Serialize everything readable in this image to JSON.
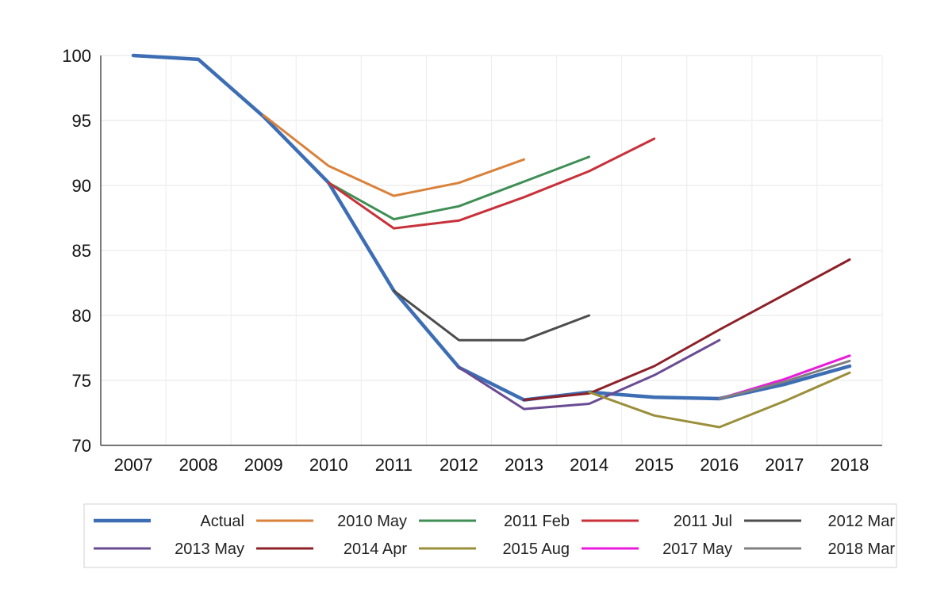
{
  "chart_data": {
    "type": "line",
    "title": "",
    "xlabel": "",
    "ylabel": "",
    "x": [
      2007,
      2008,
      2009,
      2010,
      2011,
      2012,
      2013,
      2014,
      2015,
      2016,
      2017,
      2018
    ],
    "x_tick_labels": [
      "2007",
      "2008",
      "2009",
      "2010",
      "2011",
      "2012",
      "2013",
      "2014",
      "2015",
      "2016",
      "2017",
      "2018"
    ],
    "ylim": [
      70,
      100
    ],
    "y_ticks": [
      70,
      75,
      80,
      85,
      90,
      95,
      100
    ],
    "y_tick_labels": [
      "70",
      "75",
      "80",
      "85",
      "90",
      "95",
      "100"
    ],
    "grid": true,
    "legend_position": "bottom",
    "series": [
      {
        "name": "Actual",
        "color": "#3d6eb4",
        "emphasis": true,
        "points": [
          [
            2007,
            100
          ],
          [
            2008,
            99.7
          ],
          [
            2009,
            95.3
          ],
          [
            2010,
            90.2
          ],
          [
            2011,
            81.9
          ],
          [
            2012,
            76.0
          ],
          [
            2013,
            73.5
          ],
          [
            2014,
            74.1
          ],
          [
            2015,
            73.7
          ],
          [
            2016,
            73.6
          ],
          [
            2017,
            74.7
          ],
          [
            2018,
            76.1
          ]
        ]
      },
      {
        "name": "2010 May",
        "color": "#d9823b",
        "points": [
          [
            2009,
            95.4
          ],
          [
            2010,
            91.5
          ],
          [
            2011,
            89.2
          ],
          [
            2012,
            90.2
          ],
          [
            2013,
            92.0
          ]
        ]
      },
      {
        "name": "2011 Feb",
        "color": "#3f8f55",
        "points": [
          [
            2010,
            90.2
          ],
          [
            2011,
            87.4
          ],
          [
            2012,
            88.4
          ],
          [
            2013,
            90.3
          ],
          [
            2014,
            92.2
          ]
        ]
      },
      {
        "name": "2011 Jul",
        "color": "#c8313a",
        "points": [
          [
            2010,
            90.2
          ],
          [
            2011,
            86.7
          ],
          [
            2012,
            87.3
          ],
          [
            2013,
            89.1
          ],
          [
            2014,
            91.1
          ],
          [
            2015,
            93.6
          ]
        ]
      },
      {
        "name": "2012 Mar",
        "color": "#4d4d4d",
        "points": [
          [
            2011,
            81.9
          ],
          [
            2012,
            78.1
          ],
          [
            2013,
            78.1
          ],
          [
            2014,
            80.0
          ]
        ]
      },
      {
        "name": "2013 May",
        "color": "#6a4c93",
        "points": [
          [
            2012,
            76.0
          ],
          [
            2013,
            72.8
          ],
          [
            2014,
            73.2
          ],
          [
            2015,
            75.4
          ],
          [
            2016,
            78.1
          ]
        ]
      },
      {
        "name": "2014 Apr",
        "color": "#8c2128",
        "points": [
          [
            2013,
            73.5
          ],
          [
            2014,
            74.0
          ],
          [
            2015,
            76.1
          ],
          [
            2016,
            78.9
          ],
          [
            2017,
            81.6
          ],
          [
            2018,
            84.3
          ]
        ]
      },
      {
        "name": "2015 Aug",
        "color": "#9a8f3a",
        "points": [
          [
            2014,
            74.1
          ],
          [
            2015,
            72.3
          ],
          [
            2016,
            71.4
          ],
          [
            2017,
            73.4
          ],
          [
            2018,
            75.6
          ]
        ]
      },
      {
        "name": "2017 May",
        "color": "#e81bdc",
        "points": [
          [
            2016,
            73.6
          ],
          [
            2017,
            75.1
          ],
          [
            2018,
            76.9
          ]
        ]
      },
      {
        "name": "2018 Mar",
        "color": "#808080",
        "points": [
          [
            2016,
            73.6
          ],
          [
            2017,
            74.9
          ],
          [
            2018,
            76.5
          ]
        ]
      }
    ]
  }
}
